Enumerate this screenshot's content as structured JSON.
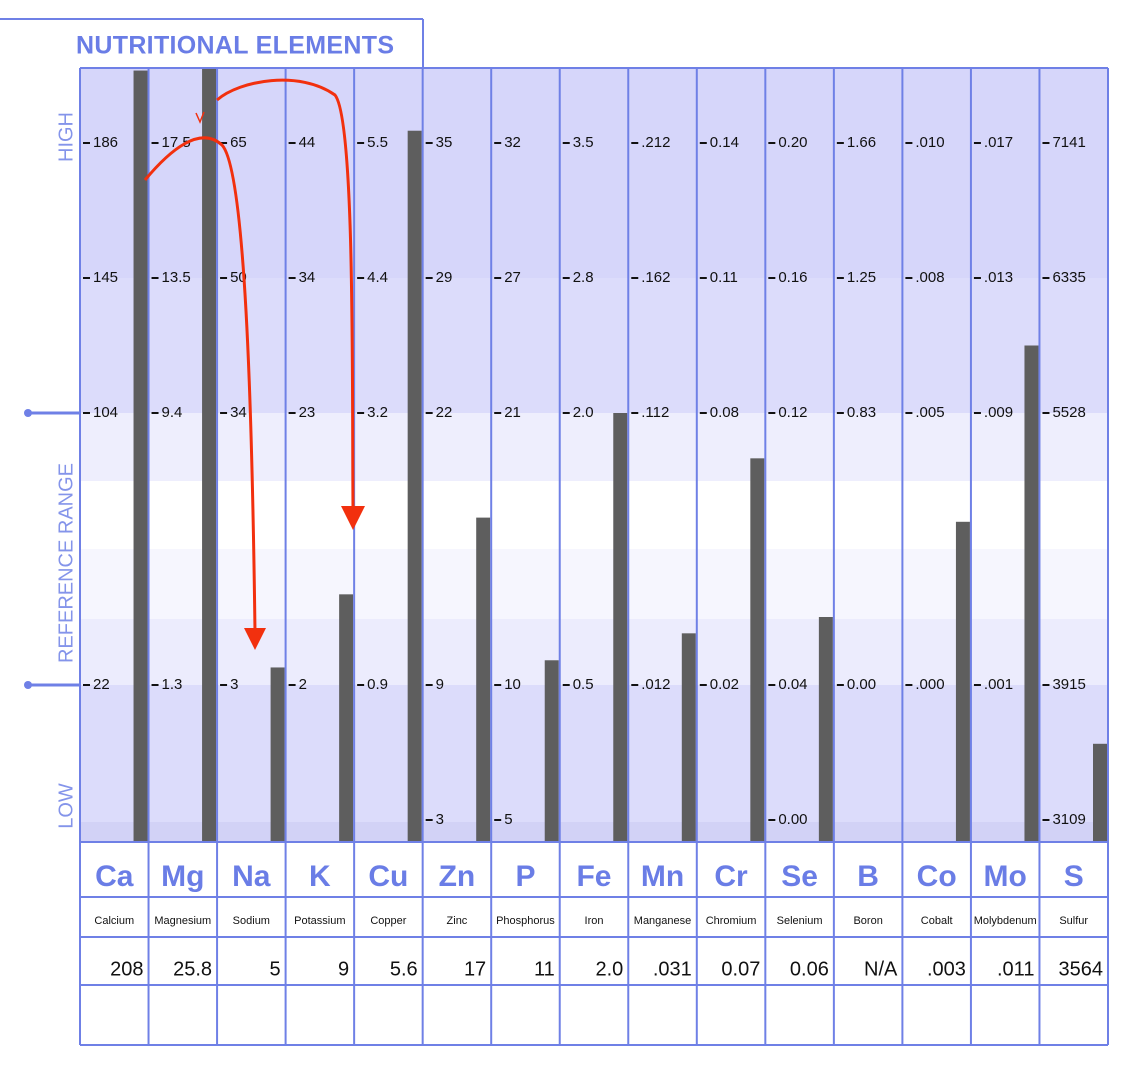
{
  "chart_data": {
    "type": "bar",
    "title": "NUTRITIONAL  ELEMENTS",
    "axis_labels": {
      "high": "HIGH",
      "range": "REFERENCE  RANGE",
      "low": "LOW"
    },
    "categories": [
      "Ca",
      "Mg",
      "Na",
      "K",
      "Cu",
      "Zn",
      "P",
      "Fe",
      "Mn",
      "Cr",
      "Se",
      "B",
      "Co",
      "Mo",
      "S"
    ],
    "names": [
      "Calcium",
      "Magnesium",
      "Sodium",
      "Potassium",
      "Copper",
      "Zinc",
      "Phosphorus",
      "Iron",
      "Manganese",
      "Chromium",
      "Selenium",
      "Boron",
      "Cobalt",
      "Molybdenum",
      "Sulfur"
    ],
    "ticks": [
      [
        186,
        145,
        104,
        22,
        null
      ],
      [
        17.5,
        13.5,
        9.4,
        1.3,
        null
      ],
      [
        65,
        50,
        34,
        3,
        null
      ],
      [
        44,
        34,
        23,
        2,
        null
      ],
      [
        5.5,
        4.4,
        3.2,
        0.9,
        null
      ],
      [
        35,
        29,
        22,
        9,
        3
      ],
      [
        32,
        27,
        21,
        10,
        5
      ],
      [
        3.5,
        2.8,
        {
          "value": 2,
          "label": "2.0"
        },
        0.5,
        null
      ],
      [
        {
          "value": 0.212,
          "label": ".212"
        },
        {
          "value": 0.162,
          "label": ".162"
        },
        {
          "value": 0.112,
          "label": ".112"
        },
        {
          "value": 0.012,
          "label": ".012"
        },
        null
      ],
      [
        0.14,
        0.11,
        0.08,
        0.02,
        null
      ],
      [
        {
          "value": 0.2,
          "label": "0.20"
        },
        0.16,
        0.12,
        0.04,
        {
          "value": 0,
          "label": "0.00"
        }
      ],
      [
        1.66,
        1.25,
        0.83,
        {
          "value": 0,
          "label": "0.00"
        },
        null
      ],
      [
        {
          "value": 0.01,
          "label": ".010"
        },
        {
          "value": 0.008,
          "label": ".008"
        },
        {
          "value": 0.005,
          "label": ".005"
        },
        {
          "value": 0,
          "label": ".000"
        },
        null
      ],
      [
        {
          "value": 0.017,
          "label": ".017"
        },
        {
          "value": 0.013,
          "label": ".013"
        },
        {
          "value": 0.009,
          "label": ".009"
        },
        {
          "value": 0.001,
          "label": ".001"
        },
        null
      ],
      [
        7141,
        6335,
        5528,
        3915,
        3109
      ]
    ],
    "values": [
      208,
      25.8,
      5,
      9,
      5.6,
      17,
      11,
      2,
      0.031,
      0.07,
      0.06,
      null,
      0.003,
      0.011,
      3564
    ],
    "value_labels": [
      "208",
      "25.8",
      "5",
      "9",
      "5.6",
      "17",
      "11",
      "2.0",
      ".031",
      "0.07",
      "0.06",
      "N/A",
      ".003",
      ".011",
      "3564"
    ],
    "color": "#5e5e5e"
  }
}
